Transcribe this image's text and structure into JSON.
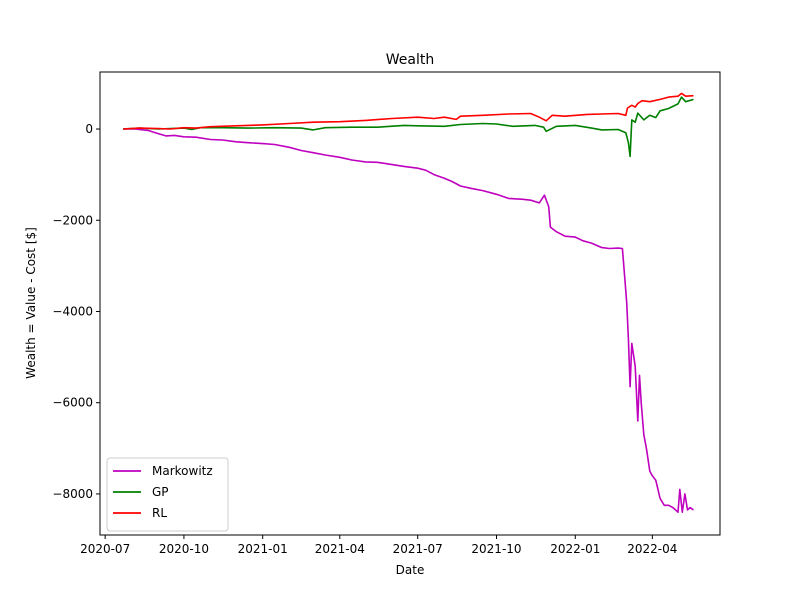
{
  "chart_data": {
    "type": "line",
    "title": "Wealth",
    "xlabel": "Date",
    "ylabel": "Wealth = Value - Cost [$]",
    "xlim": [
      "2020-06-25",
      "2022-06-19"
    ],
    "ylim": [
      -8900,
      1250
    ],
    "grid": false,
    "legend_position": "lower-left",
    "x_ticks": [
      {
        "date": "2020-07-01",
        "label": "2020-07"
      },
      {
        "date": "2020-10-01",
        "label": "2020-10"
      },
      {
        "date": "2021-01-01",
        "label": "2021-01"
      },
      {
        "date": "2021-04-01",
        "label": "2021-04"
      },
      {
        "date": "2021-07-01",
        "label": "2021-07"
      },
      {
        "date": "2021-10-01",
        "label": "2021-10"
      },
      {
        "date": "2022-01-01",
        "label": "2022-01"
      },
      {
        "date": "2022-04-01",
        "label": "2022-04"
      }
    ],
    "y_ticks": [
      {
        "value": 0,
        "label": "0"
      },
      {
        "value": -2000,
        "label": "−2000"
      },
      {
        "value": -4000,
        "label": "−4000"
      },
      {
        "value": -6000,
        "label": "−6000"
      },
      {
        "value": -8000,
        "label": "−8000"
      }
    ],
    "series": [
      {
        "name": "Markowitz",
        "color": "#bf00bf",
        "points": [
          [
            "2020-07-22",
            0
          ],
          [
            "2020-08-05",
            0
          ],
          [
            "2020-08-20",
            -30
          ],
          [
            "2020-09-01",
            -100
          ],
          [
            "2020-09-10",
            -150
          ],
          [
            "2020-09-20",
            -140
          ],
          [
            "2020-10-01",
            -170
          ],
          [
            "2020-10-15",
            -180
          ],
          [
            "2020-11-01",
            -230
          ],
          [
            "2020-11-15",
            -240
          ],
          [
            "2020-12-01",
            -280
          ],
          [
            "2020-12-15",
            -300
          ],
          [
            "2021-01-01",
            -320
          ],
          [
            "2021-01-15",
            -340
          ],
          [
            "2021-02-01",
            -400
          ],
          [
            "2021-02-15",
            -470
          ],
          [
            "2021-03-01",
            -520
          ],
          [
            "2021-03-15",
            -570
          ],
          [
            "2021-04-01",
            -620
          ],
          [
            "2021-04-15",
            -680
          ],
          [
            "2021-05-01",
            -720
          ],
          [
            "2021-05-15",
            -730
          ],
          [
            "2021-06-01",
            -780
          ],
          [
            "2021-06-15",
            -820
          ],
          [
            "2021-07-01",
            -860
          ],
          [
            "2021-07-10",
            -900
          ],
          [
            "2021-07-20",
            -1000
          ],
          [
            "2021-08-01",
            -1080
          ],
          [
            "2021-08-10",
            -1150
          ],
          [
            "2021-08-20",
            -1250
          ],
          [
            "2021-09-01",
            -1300
          ],
          [
            "2021-09-15",
            -1350
          ],
          [
            "2021-10-01",
            -1430
          ],
          [
            "2021-10-15",
            -1520
          ],
          [
            "2021-11-01",
            -1540
          ],
          [
            "2021-11-10",
            -1560
          ],
          [
            "2021-11-20",
            -1620
          ],
          [
            "2021-11-26",
            -1450
          ],
          [
            "2021-12-01",
            -1700
          ],
          [
            "2021-12-03",
            -2150
          ],
          [
            "2021-12-10",
            -2250
          ],
          [
            "2021-12-20",
            -2350
          ],
          [
            "2022-01-01",
            -2370
          ],
          [
            "2022-01-10",
            -2450
          ],
          [
            "2022-01-20",
            -2500
          ],
          [
            "2022-02-01",
            -2600
          ],
          [
            "2022-02-10",
            -2620
          ],
          [
            "2022-02-20",
            -2610
          ],
          [
            "2022-02-25",
            -2620
          ],
          [
            "2022-02-28",
            -3300
          ],
          [
            "2022-03-02",
            -3800
          ],
          [
            "2022-03-04",
            -4600
          ],
          [
            "2022-03-06",
            -5650
          ],
          [
            "2022-03-08",
            -4700
          ],
          [
            "2022-03-12",
            -5200
          ],
          [
            "2022-03-15",
            -6400
          ],
          [
            "2022-03-17",
            -5400
          ],
          [
            "2022-03-19",
            -6000
          ],
          [
            "2022-03-22",
            -6700
          ],
          [
            "2022-03-25",
            -7000
          ],
          [
            "2022-03-29",
            -7500
          ],
          [
            "2022-04-01",
            -7600
          ],
          [
            "2022-04-05",
            -7700
          ],
          [
            "2022-04-10",
            -8100
          ],
          [
            "2022-04-15",
            -8250
          ],
          [
            "2022-04-20",
            -8250
          ],
          [
            "2022-04-25",
            -8300
          ],
          [
            "2022-05-01",
            -8400
          ],
          [
            "2022-05-03",
            -7900
          ],
          [
            "2022-05-06",
            -8400
          ],
          [
            "2022-05-09",
            -8000
          ],
          [
            "2022-05-12",
            -8350
          ],
          [
            "2022-05-15",
            -8300
          ],
          [
            "2022-05-19",
            -8350
          ]
        ]
      },
      {
        "name": "GP",
        "color": "#008000",
        "points": [
          [
            "2020-07-22",
            0
          ],
          [
            "2020-08-10",
            20
          ],
          [
            "2020-09-01",
            0
          ],
          [
            "2020-09-15",
            10
          ],
          [
            "2020-10-01",
            20
          ],
          [
            "2020-10-10",
            -10
          ],
          [
            "2020-10-20",
            30
          ],
          [
            "2020-11-15",
            30
          ],
          [
            "2020-12-15",
            20
          ],
          [
            "2021-01-15",
            30
          ],
          [
            "2021-02-15",
            20
          ],
          [
            "2021-03-01",
            -20
          ],
          [
            "2021-03-15",
            30
          ],
          [
            "2021-04-15",
            40
          ],
          [
            "2021-05-15",
            40
          ],
          [
            "2021-06-15",
            80
          ],
          [
            "2021-07-01",
            70
          ],
          [
            "2021-08-01",
            60
          ],
          [
            "2021-08-20",
            100
          ],
          [
            "2021-09-15",
            120
          ],
          [
            "2021-10-01",
            110
          ],
          [
            "2021-10-20",
            60
          ],
          [
            "2021-11-15",
            80
          ],
          [
            "2021-11-25",
            40
          ],
          [
            "2021-11-28",
            -50
          ],
          [
            "2021-12-10",
            60
          ],
          [
            "2022-01-01",
            80
          ],
          [
            "2022-01-20",
            20
          ],
          [
            "2022-02-01",
            -20
          ],
          [
            "2022-02-20",
            -10
          ],
          [
            "2022-03-01",
            -80
          ],
          [
            "2022-03-04",
            -300
          ],
          [
            "2022-03-06",
            -600
          ],
          [
            "2022-03-08",
            200
          ],
          [
            "2022-03-12",
            150
          ],
          [
            "2022-03-15",
            350
          ],
          [
            "2022-03-22",
            200
          ],
          [
            "2022-03-29",
            300
          ],
          [
            "2022-04-05",
            250
          ],
          [
            "2022-04-10",
            400
          ],
          [
            "2022-04-20",
            450
          ],
          [
            "2022-05-01",
            550
          ],
          [
            "2022-05-05",
            700
          ],
          [
            "2022-05-10",
            600
          ],
          [
            "2022-05-19",
            650
          ]
        ]
      },
      {
        "name": "RL",
        "color": "#ff0000",
        "points": [
          [
            "2020-07-22",
            0
          ],
          [
            "2020-08-10",
            20
          ],
          [
            "2020-09-01",
            10
          ],
          [
            "2020-09-15",
            0
          ],
          [
            "2020-10-01",
            30
          ],
          [
            "2020-10-15",
            20
          ],
          [
            "2020-11-01",
            50
          ],
          [
            "2020-12-01",
            70
          ],
          [
            "2021-01-01",
            90
          ],
          [
            "2021-02-01",
            120
          ],
          [
            "2021-03-01",
            150
          ],
          [
            "2021-04-01",
            160
          ],
          [
            "2021-05-01",
            190
          ],
          [
            "2021-06-01",
            230
          ],
          [
            "2021-07-01",
            260
          ],
          [
            "2021-07-20",
            230
          ],
          [
            "2021-08-01",
            260
          ],
          [
            "2021-08-15",
            210
          ],
          [
            "2021-08-20",
            280
          ],
          [
            "2021-09-15",
            300
          ],
          [
            "2021-10-15",
            330
          ],
          [
            "2021-11-10",
            340
          ],
          [
            "2021-11-20",
            260
          ],
          [
            "2021-11-28",
            180
          ],
          [
            "2021-12-05",
            300
          ],
          [
            "2021-12-20",
            280
          ],
          [
            "2022-01-15",
            320
          ],
          [
            "2022-02-01",
            330
          ],
          [
            "2022-02-20",
            340
          ],
          [
            "2022-03-01",
            300
          ],
          [
            "2022-03-03",
            460
          ],
          [
            "2022-03-08",
            520
          ],
          [
            "2022-03-12",
            480
          ],
          [
            "2022-03-15",
            560
          ],
          [
            "2022-03-20",
            620
          ],
          [
            "2022-03-29",
            600
          ],
          [
            "2022-04-10",
            650
          ],
          [
            "2022-04-20",
            700
          ],
          [
            "2022-05-01",
            720
          ],
          [
            "2022-05-05",
            780
          ],
          [
            "2022-05-10",
            720
          ],
          [
            "2022-05-19",
            730
          ]
        ]
      }
    ]
  }
}
